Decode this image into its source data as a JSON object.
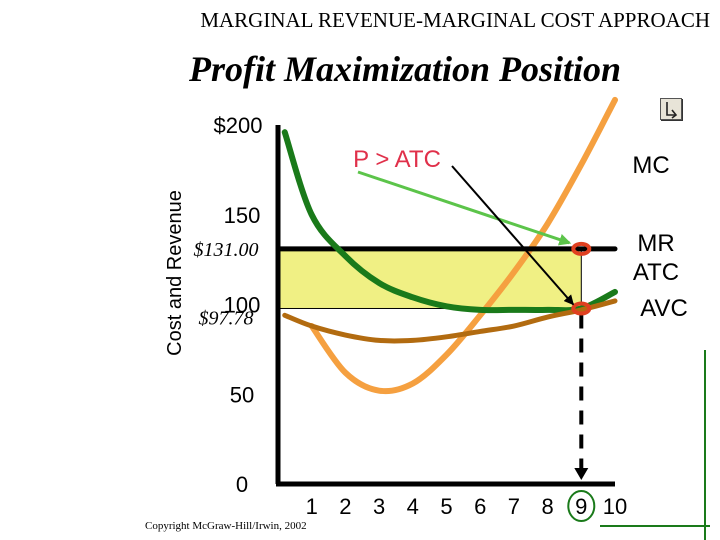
{
  "header": {
    "title": "MARGINAL REVENUE-MARGINAL COST APPROACH",
    "subtitle": "Profit Maximization Position"
  },
  "footer": {
    "copyright": "Copyright McGraw-Hill/Irwin, 2002"
  },
  "nav": {
    "icon": "return-arrow-icon"
  },
  "chart_data": {
    "type": "line",
    "title": "Profit Maximization Position",
    "ylabel": "Cost and Revenue",
    "xlabel": "",
    "xlim": [
      0,
      10
    ],
    "ylim": [
      0,
      200
    ],
    "x_ticks": [
      "1",
      "2",
      "3",
      "4",
      "5",
      "6",
      "7",
      "8",
      "9",
      "10"
    ],
    "y_ticks": [
      {
        "value": 200,
        "label": "$200"
      },
      {
        "value": 150,
        "label": "150"
      },
      {
        "value": 100,
        "label": "100"
      },
      {
        "value": 50,
        "label": "50"
      },
      {
        "value": 0,
        "label": "0"
      }
    ],
    "price_ticks": [
      {
        "value": 131.0,
        "label": "$131.00"
      },
      {
        "value": 97.78,
        "label": "$97.78"
      }
    ],
    "series": [
      {
        "name": "MC",
        "color": "#f5a040",
        "x": [
          1,
          2,
          3,
          4,
          5,
          6,
          7,
          8,
          9,
          10
        ],
        "y": [
          88,
          62,
          52,
          56,
          72,
          94,
          118,
          145,
          178,
          214
        ]
      },
      {
        "name": "MR",
        "color": "#000000",
        "x": [
          0,
          10
        ],
        "y": [
          131,
          131
        ]
      },
      {
        "name": "ATC",
        "color": "#1a7a1a",
        "x": [
          0.2,
          1,
          2,
          3,
          4,
          5,
          6,
          7,
          8,
          9,
          10
        ],
        "y": [
          196,
          150,
          127,
          112,
          104,
          99,
          97,
          97,
          97,
          97.78,
          107
        ]
      },
      {
        "name": "AVC",
        "color": "#b26b10",
        "x": [
          0.2,
          1,
          2,
          3,
          4,
          5,
          6,
          7,
          8,
          9,
          10
        ],
        "y": [
          94,
          88,
          83,
          80,
          80,
          82,
          85,
          88,
          93,
          97,
          102
        ]
      }
    ],
    "profit_area": {
      "x_range": [
        0,
        9
      ],
      "y_range": [
        97.78,
        131.0
      ],
      "color": "#f0f084"
    },
    "optimum": {
      "x": 9,
      "label": "9",
      "marker_color": "#e04020"
    },
    "annotations": [
      {
        "text": "P > ATC",
        "color": "#e0304a"
      }
    ],
    "grid": false,
    "legend": "none"
  }
}
